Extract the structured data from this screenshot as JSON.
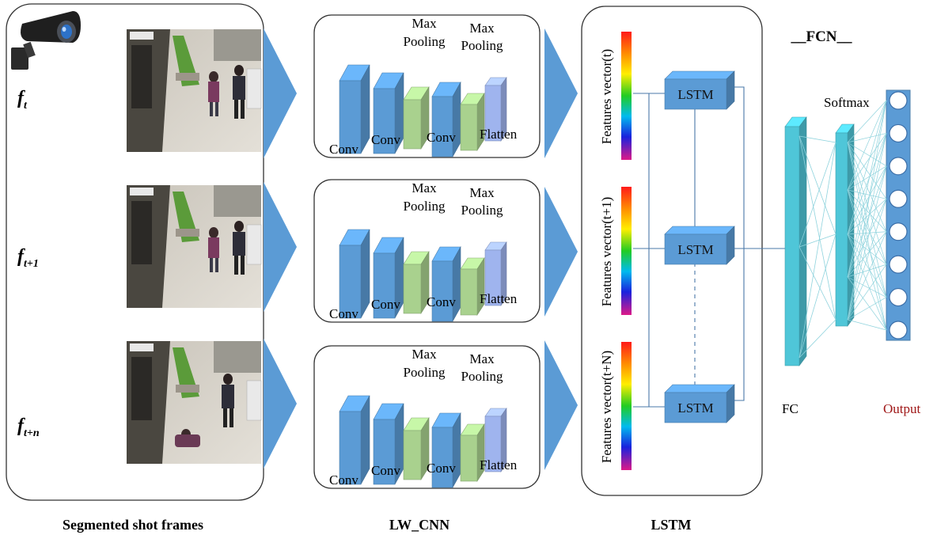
{
  "frames": {
    "labels": [
      {
        "base": "f",
        "sub": "t"
      },
      {
        "base": "f",
        "sub": "t+1"
      },
      {
        "base": "f",
        "sub": "t+n"
      }
    ],
    "caption": "Segmented shot frames"
  },
  "cnn": {
    "caption": "LW_CNN",
    "layer_labels": {
      "conv": "Conv",
      "max": "Max",
      "pooling": "Pooling",
      "flatten": "Flatten"
    }
  },
  "lstm": {
    "caption": "LSTM",
    "cell_label": "LSTM",
    "feature_vectors": [
      "Features vector(t)",
      "Features vector(t+1)",
      "Features vector(t+N)"
    ]
  },
  "fcn": {
    "title": "__FCN__",
    "softmax_label": "Softmax",
    "fc_label": "FC",
    "output_label": "Output",
    "output_color": "#a01818",
    "output_nodes": 8
  },
  "colors": {
    "conv": "#5b9bd5",
    "pool": "#a9d18e",
    "flatten": "#9fb4ee",
    "fc": "#4fc6d8",
    "arrow": "#5b9bd5"
  }
}
